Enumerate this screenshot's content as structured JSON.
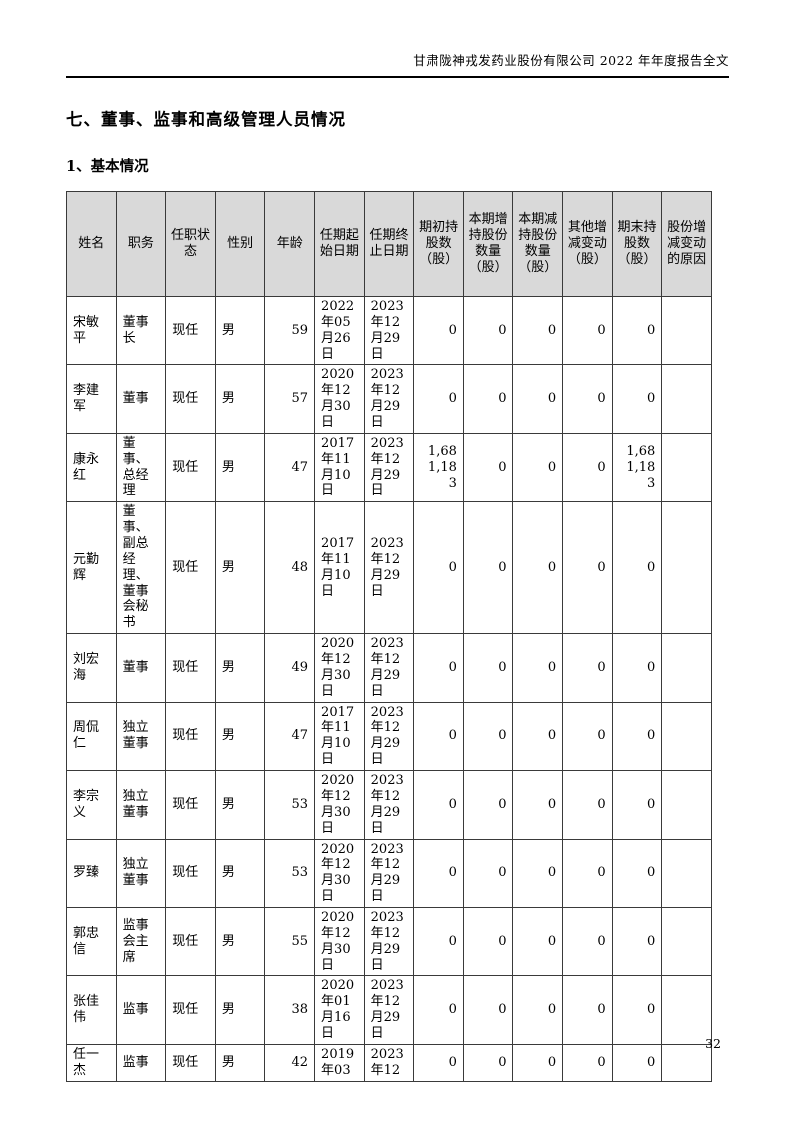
{
  "page": {
    "header": "甘肃陇神戎发药业股份有限公司 2022 年年度报告全文",
    "section_title": "七、董事、监事和高级管理人员情况",
    "subsection_title": "1、基本情况",
    "page_number": "32"
  },
  "table": {
    "columns": [
      "姓名",
      "职务",
      "任职状态",
      "性别",
      "年龄",
      "任期起始日期",
      "任期终止日期",
      "期初持股数（股）",
      "本期增持股份数量（股）",
      "本期减持股份数量（股）",
      "其他增减变动（股）",
      "期末持股数（股）",
      "股份增减变动的原因"
    ],
    "rows": [
      {
        "name": "宋敏平",
        "title": "董事长",
        "status": "现任",
        "gender": "男",
        "age": "59",
        "start": "2022年05月26日",
        "end": "2023年12月29日",
        "initial": "0",
        "increase": "0",
        "decrease": "0",
        "other": "0",
        "final": "0",
        "reason": ""
      },
      {
        "name": "李建军",
        "title": "董事",
        "status": "现任",
        "gender": "男",
        "age": "57",
        "start": "2020年12月30日",
        "end": "2023年12月29日",
        "initial": "0",
        "increase": "0",
        "decrease": "0",
        "other": "0",
        "final": "0",
        "reason": ""
      },
      {
        "name": "康永红",
        "title": "董事、总经理",
        "status": "现任",
        "gender": "男",
        "age": "47",
        "start": "2017年11月10日",
        "end": "2023年12月29日",
        "initial": "1,681,183",
        "increase": "0",
        "decrease": "0",
        "other": "0",
        "final": "1,681,183",
        "reason": ""
      },
      {
        "name": "元勤辉",
        "title": "董事、副总经理、董事会秘书",
        "status": "现任",
        "gender": "男",
        "age": "48",
        "start": "2017年11月10日",
        "end": "2023年12月29日",
        "initial": "0",
        "increase": "0",
        "decrease": "0",
        "other": "0",
        "final": "0",
        "reason": ""
      },
      {
        "name": "刘宏海",
        "title": "董事",
        "status": "现任",
        "gender": "男",
        "age": "49",
        "start": "2020年12月30日",
        "end": "2023年12月29日",
        "initial": "0",
        "increase": "0",
        "decrease": "0",
        "other": "0",
        "final": "0",
        "reason": ""
      },
      {
        "name": "周侃仁",
        "title": "独立董事",
        "status": "现任",
        "gender": "男",
        "age": "47",
        "start": "2017年11月10日",
        "end": "2023年12月29日",
        "initial": "0",
        "increase": "0",
        "decrease": "0",
        "other": "0",
        "final": "0",
        "reason": ""
      },
      {
        "name": "李宗义",
        "title": "独立董事",
        "status": "现任",
        "gender": "男",
        "age": "53",
        "start": "2020年12月30日",
        "end": "2023年12月29日",
        "initial": "0",
        "increase": "0",
        "decrease": "0",
        "other": "0",
        "final": "0",
        "reason": ""
      },
      {
        "name": "罗臻",
        "title": "独立董事",
        "status": "现任",
        "gender": "男",
        "age": "53",
        "start": "2020年12月30日",
        "end": "2023年12月29日",
        "initial": "0",
        "increase": "0",
        "decrease": "0",
        "other": "0",
        "final": "0",
        "reason": ""
      },
      {
        "name": "郭忠信",
        "title": "监事会主席",
        "status": "现任",
        "gender": "男",
        "age": "55",
        "start": "2020年12月30日",
        "end": "2023年12月29日",
        "initial": "0",
        "increase": "0",
        "decrease": "0",
        "other": "0",
        "final": "0",
        "reason": ""
      },
      {
        "name": "张佳伟",
        "title": "监事",
        "status": "现任",
        "gender": "男",
        "age": "38",
        "start": "2020年01月16日",
        "end": "2023年12月29日",
        "initial": "0",
        "increase": "0",
        "decrease": "0",
        "other": "0",
        "final": "0",
        "reason": ""
      },
      {
        "name": "任一杰",
        "title": "监事",
        "status": "现任",
        "gender": "男",
        "age": "42",
        "start": "2019年03",
        "end": "2023年12",
        "initial": "0",
        "increase": "0",
        "decrease": "0",
        "other": "0",
        "final": "0",
        "reason": ""
      }
    ]
  }
}
